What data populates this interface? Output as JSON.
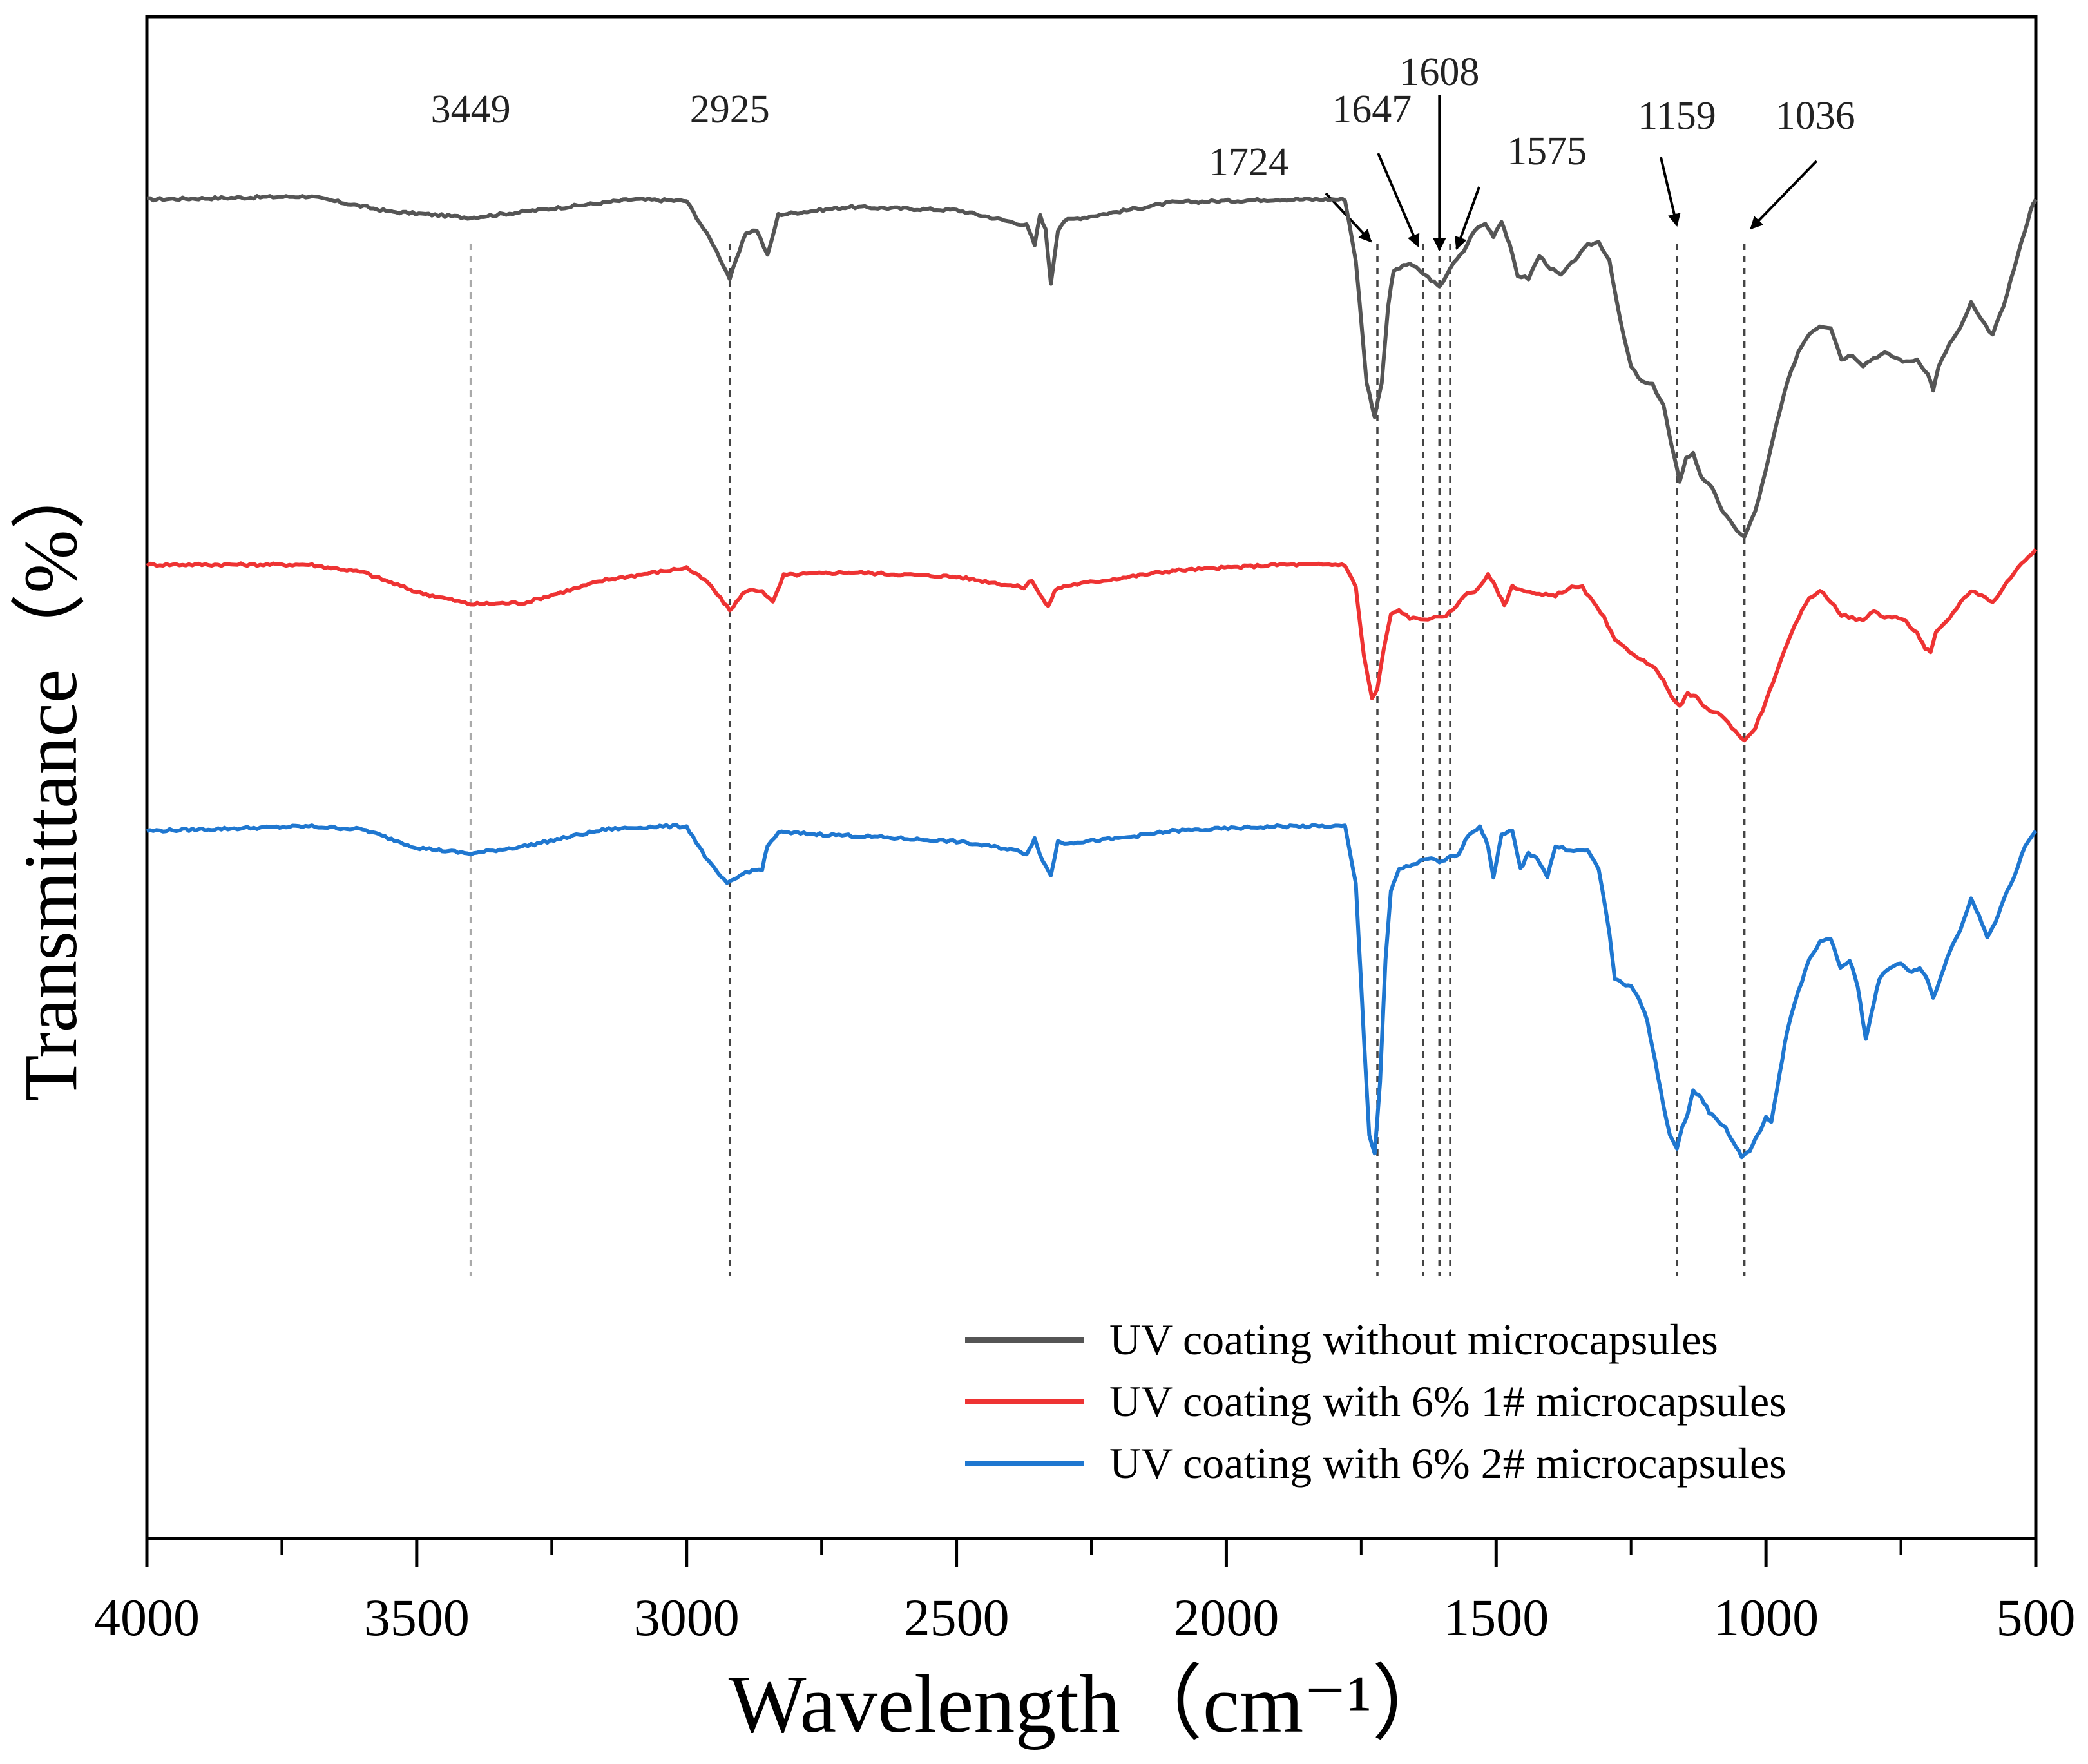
{
  "chart_data": {
    "type": "line",
    "title": "",
    "xlabel": "Wavelength（cm⁻¹）",
    "ylabel": "Transmittance（%）",
    "xlim": [
      4000,
      500
    ],
    "ylim": [
      0,
      100
    ],
    "x_ticks": [
      4000,
      3500,
      3000,
      2500,
      2000,
      1500,
      1000,
      500
    ],
    "x_tick_labels": [
      "4000",
      "3500",
      "3000",
      "2500",
      "2000",
      "1500",
      "1000",
      "500"
    ],
    "grid": false,
    "legend_position": "bottom-right",
    "peaks": [
      {
        "label": "3449",
        "x": 3400,
        "style": "line"
      },
      {
        "label": "2925",
        "x": 2920,
        "style": "line"
      },
      {
        "label": "1724",
        "x": 1720,
        "style": "arrow"
      },
      {
        "label": "1647",
        "x": 1635,
        "style": "arrow"
      },
      {
        "label": "1608",
        "x": 1605,
        "style": "arrow"
      },
      {
        "label": "1575",
        "x": 1585,
        "style": "arrow"
      },
      {
        "label": "1159",
        "x": 1165,
        "style": "arrow"
      },
      {
        "label": "1036",
        "x": 1040,
        "style": "arrow"
      }
    ],
    "series": [
      {
        "name": "UV coating without microcapsules",
        "color": "#555555",
        "points": [
          [
            4000,
            88
          ],
          [
            3700,
            88.2
          ],
          [
            3550,
            87.2
          ],
          [
            3400,
            86.8
          ],
          [
            3250,
            87.4
          ],
          [
            3100,
            88
          ],
          [
            3000,
            87.9
          ],
          [
            2950,
            85
          ],
          [
            2920,
            82.8
          ],
          [
            2890,
            85.8
          ],
          [
            2870,
            86
          ],
          [
            2850,
            84.3
          ],
          [
            2830,
            87
          ],
          [
            2700,
            87.5
          ],
          [
            2500,
            87.3
          ],
          [
            2370,
            86.3
          ],
          [
            2355,
            85
          ],
          [
            2345,
            87
          ],
          [
            2335,
            86
          ],
          [
            2325,
            82.5
          ],
          [
            2312,
            86
          ],
          [
            2300,
            86.6
          ],
          [
            2100,
            87.8
          ],
          [
            1900,
            88
          ],
          [
            1780,
            88
          ],
          [
            1760,
            84
          ],
          [
            1740,
            76
          ],
          [
            1725,
            73.7
          ],
          [
            1712,
            76
          ],
          [
            1700,
            81
          ],
          [
            1690,
            83.3
          ],
          [
            1660,
            83.8
          ],
          [
            1620,
            82.7
          ],
          [
            1605,
            82.2
          ],
          [
            1585,
            83.5
          ],
          [
            1560,
            84.6
          ],
          [
            1540,
            86
          ],
          [
            1520,
            86.4
          ],
          [
            1505,
            85.6
          ],
          [
            1490,
            86.6
          ],
          [
            1475,
            85
          ],
          [
            1460,
            83
          ],
          [
            1440,
            82.8
          ],
          [
            1420,
            84.3
          ],
          [
            1400,
            83.5
          ],
          [
            1380,
            83
          ],
          [
            1360,
            83.8
          ],
          [
            1330,
            85
          ],
          [
            1310,
            85.2
          ],
          [
            1290,
            84
          ],
          [
            1270,
            80
          ],
          [
            1250,
            77
          ],
          [
            1230,
            76
          ],
          [
            1210,
            75.8
          ],
          [
            1190,
            74.5
          ],
          [
            1175,
            71.8
          ],
          [
            1160,
            69.5
          ],
          [
            1148,
            71
          ],
          [
            1135,
            71.3
          ],
          [
            1120,
            69.8
          ],
          [
            1100,
            69
          ],
          [
            1080,
            67.5
          ],
          [
            1060,
            66.5
          ],
          [
            1040,
            65.8
          ],
          [
            1020,
            67.5
          ],
          [
            1000,
            70.2
          ],
          [
            980,
            73.3
          ],
          [
            960,
            76
          ],
          [
            940,
            78
          ],
          [
            920,
            79.2
          ],
          [
            900,
            79.7
          ],
          [
            880,
            79.6
          ],
          [
            860,
            77.5
          ],
          [
            840,
            77.8
          ],
          [
            820,
            77.1
          ],
          [
            800,
            77.6
          ],
          [
            780,
            77.9
          ],
          [
            760,
            77.6
          ],
          [
            740,
            77.3
          ],
          [
            720,
            77.5
          ],
          [
            700,
            76.5
          ],
          [
            690,
            75.5
          ],
          [
            680,
            77
          ],
          [
            660,
            78.5
          ],
          [
            640,
            79.5
          ],
          [
            620,
            81.2
          ],
          [
            600,
            80
          ],
          [
            580,
            79.1
          ],
          [
            560,
            81
          ],
          [
            540,
            83.5
          ],
          [
            520,
            86
          ],
          [
            505,
            87.8
          ],
          [
            500,
            88
          ]
        ]
      },
      {
        "name": "UV coating with 6% 1# microcapsules",
        "color": "#ee3333",
        "points": [
          [
            4000,
            64
          ],
          [
            3700,
            64
          ],
          [
            3600,
            63.5
          ],
          [
            3500,
            62.2
          ],
          [
            3400,
            61.4
          ],
          [
            3300,
            61.5
          ],
          [
            3150,
            63
          ],
          [
            3000,
            63.8
          ],
          [
            2960,
            62.8
          ],
          [
            2920,
            61
          ],
          [
            2890,
            62.3
          ],
          [
            2860,
            62.3
          ],
          [
            2840,
            61.5
          ],
          [
            2820,
            63.3
          ],
          [
            2700,
            63.5
          ],
          [
            2500,
            63.2
          ],
          [
            2375,
            62.5
          ],
          [
            2360,
            63
          ],
          [
            2345,
            62
          ],
          [
            2330,
            61.2
          ],
          [
            2318,
            62.3
          ],
          [
            2300,
            62.6
          ],
          [
            2100,
            63.6
          ],
          [
            1900,
            64
          ],
          [
            1780,
            64
          ],
          [
            1760,
            62.5
          ],
          [
            1745,
            58
          ],
          [
            1730,
            55.2
          ],
          [
            1720,
            55.8
          ],
          [
            1708,
            58.5
          ],
          [
            1695,
            60.7
          ],
          [
            1680,
            61
          ],
          [
            1660,
            60.5
          ],
          [
            1640,
            60.4
          ],
          [
            1620,
            60.5
          ],
          [
            1600,
            60.5
          ],
          [
            1580,
            61
          ],
          [
            1560,
            62
          ],
          [
            1540,
            62.2
          ],
          [
            1515,
            63.3
          ],
          [
            1500,
            62.5
          ],
          [
            1485,
            61.3
          ],
          [
            1470,
            62.6
          ],
          [
            1450,
            62.3
          ],
          [
            1420,
            62
          ],
          [
            1390,
            62
          ],
          [
            1360,
            62.5
          ],
          [
            1340,
            62.5
          ],
          [
            1320,
            61.5
          ],
          [
            1300,
            60.5
          ],
          [
            1280,
            59
          ],
          [
            1260,
            58.5
          ],
          [
            1240,
            58
          ],
          [
            1220,
            57.5
          ],
          [
            1200,
            57
          ],
          [
            1185,
            56
          ],
          [
            1170,
            55
          ],
          [
            1160,
            54.7
          ],
          [
            1145,
            55.5
          ],
          [
            1130,
            55.3
          ],
          [
            1110,
            54.5
          ],
          [
            1090,
            54.3
          ],
          [
            1070,
            53.6
          ],
          [
            1050,
            52.8
          ],
          [
            1040,
            52.4
          ],
          [
            1020,
            53.3
          ],
          [
            1000,
            55
          ],
          [
            980,
            57
          ],
          [
            960,
            58.8
          ],
          [
            940,
            60.5
          ],
          [
            920,
            61.8
          ],
          [
            900,
            62.3
          ],
          [
            880,
            61.6
          ],
          [
            860,
            60.7
          ],
          [
            840,
            60.5
          ],
          [
            820,
            60.3
          ],
          [
            800,
            61
          ],
          [
            780,
            60.5
          ],
          [
            760,
            60.6
          ],
          [
            740,
            60.2
          ],
          [
            720,
            59.5
          ],
          [
            705,
            58.5
          ],
          [
            695,
            58.2
          ],
          [
            685,
            59.5
          ],
          [
            660,
            60.5
          ],
          [
            640,
            61.5
          ],
          [
            620,
            62.3
          ],
          [
            600,
            62
          ],
          [
            580,
            61.5
          ],
          [
            560,
            62.5
          ],
          [
            540,
            63.5
          ],
          [
            520,
            64.3
          ],
          [
            500,
            65
          ]
        ]
      },
      {
        "name": "UV coating with 6% 2# microcapsules",
        "color": "#1f77d0",
        "points": [
          [
            4000,
            46.5
          ],
          [
            3700,
            46.8
          ],
          [
            3600,
            46.6
          ],
          [
            3500,
            45.4
          ],
          [
            3400,
            45
          ],
          [
            3300,
            45.5
          ],
          [
            3150,
            46.6
          ],
          [
            3050,
            46.8
          ],
          [
            3000,
            46.8
          ],
          [
            2960,
            44.5
          ],
          [
            2925,
            43
          ],
          [
            2890,
            43.8
          ],
          [
            2860,
            44
          ],
          [
            2850,
            45.5
          ],
          [
            2830,
            46.4
          ],
          [
            2700,
            46.2
          ],
          [
            2500,
            45.8
          ],
          [
            2400,
            45.3
          ],
          [
            2370,
            45
          ],
          [
            2355,
            46
          ],
          [
            2340,
            44.5
          ],
          [
            2325,
            43.6
          ],
          [
            2312,
            45.8
          ],
          [
            2300,
            45.7
          ],
          [
            2200,
            46
          ],
          [
            2100,
            46.5
          ],
          [
            1900,
            46.8
          ],
          [
            1780,
            46.8
          ],
          [
            1760,
            43
          ],
          [
            1745,
            33
          ],
          [
            1735,
            26.5
          ],
          [
            1725,
            25.3
          ],
          [
            1715,
            30
          ],
          [
            1705,
            38
          ],
          [
            1695,
            42.5
          ],
          [
            1680,
            44
          ],
          [
            1660,
            44.2
          ],
          [
            1640,
            44.5
          ],
          [
            1620,
            44.7
          ],
          [
            1605,
            44.4
          ],
          [
            1590,
            44.7
          ],
          [
            1570,
            45
          ],
          [
            1550,
            46.3
          ],
          [
            1530,
            46.8
          ],
          [
            1515,
            45.5
          ],
          [
            1505,
            43.5
          ],
          [
            1490,
            46.2
          ],
          [
            1470,
            46.5
          ],
          [
            1455,
            44
          ],
          [
            1440,
            45
          ],
          [
            1425,
            44.8
          ],
          [
            1405,
            43.5
          ],
          [
            1390,
            45.5
          ],
          [
            1370,
            45.3
          ],
          [
            1350,
            45.2
          ],
          [
            1330,
            45.2
          ],
          [
            1310,
            44
          ],
          [
            1290,
            39.8
          ],
          [
            1280,
            36.8
          ],
          [
            1265,
            36.4
          ],
          [
            1250,
            36.3
          ],
          [
            1235,
            35.5
          ],
          [
            1220,
            34
          ],
          [
            1205,
            31.3
          ],
          [
            1190,
            28.5
          ],
          [
            1178,
            26.5
          ],
          [
            1165,
            25.6
          ],
          [
            1155,
            27
          ],
          [
            1145,
            28
          ],
          [
            1135,
            29.4
          ],
          [
            1120,
            29
          ],
          [
            1105,
            28
          ],
          [
            1090,
            27.5
          ],
          [
            1075,
            27
          ],
          [
            1060,
            26
          ],
          [
            1045,
            25.1
          ],
          [
            1030,
            25.5
          ],
          [
            1015,
            26.5
          ],
          [
            1000,
            27.7
          ],
          [
            990,
            27.3
          ],
          [
            975,
            30.5
          ],
          [
            960,
            33.5
          ],
          [
            940,
            36
          ],
          [
            920,
            38
          ],
          [
            900,
            39.2
          ],
          [
            880,
            39.4
          ],
          [
            862,
            37.5
          ],
          [
            845,
            38
          ],
          [
            830,
            36.3
          ],
          [
            815,
            32.8
          ],
          [
            805,
            34.5
          ],
          [
            790,
            36.8
          ],
          [
            770,
            37.5
          ],
          [
            750,
            37.8
          ],
          [
            730,
            37.2
          ],
          [
            715,
            37.5
          ],
          [
            700,
            36.7
          ],
          [
            690,
            35.5
          ],
          [
            675,
            37
          ],
          [
            660,
            38.6
          ],
          [
            640,
            40
          ],
          [
            620,
            42
          ],
          [
            605,
            41
          ],
          [
            590,
            39.5
          ],
          [
            575,
            40.5
          ],
          [
            560,
            42
          ],
          [
            540,
            43.5
          ],
          [
            520,
            45.5
          ],
          [
            500,
            46.5
          ]
        ]
      }
    ]
  }
}
